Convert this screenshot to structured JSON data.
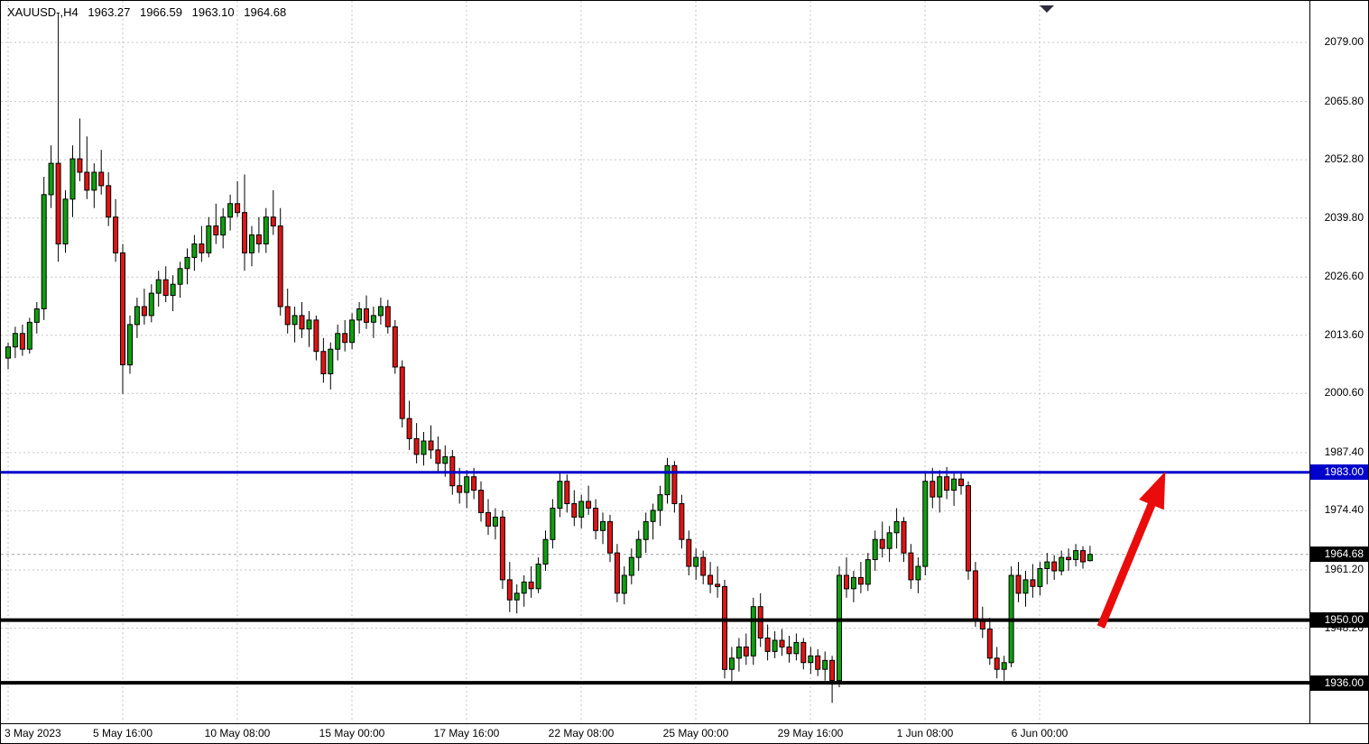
{
  "header": {
    "symbol_period": "XAUUSD-,H4",
    "open": "1963.27",
    "high": "1966.59",
    "low": "1963.10",
    "close": "1964.68"
  },
  "colors": {
    "background": "#FFFFFF",
    "up_candle": "#0FA00F",
    "down_candle": "#E01414",
    "candle_outline": "#000000",
    "grid": "#C6C6C6",
    "resistance_line": "#0000CC",
    "support_line": "#000000",
    "current_price_line": "#A0A0A0",
    "current_price_tag_bg": "#000000",
    "arrow": "#EA0B0B",
    "shift_marker": "#2E2E3E"
  },
  "chart_data": {
    "type": "candlestick",
    "symbol": "XAUUSD-",
    "timeframe": "H4",
    "title": "XAUUSD-,H4",
    "y_axis_ticks": [
      2079.0,
      2065.8,
      2052.8,
      2039.8,
      2026.6,
      2013.6,
      2000.6,
      1987.4,
      1974.4,
      1961.2,
      1948.2
    ],
    "x_axis_labels": [
      "3 May 2023",
      "5 May 16:00",
      "10 May 08:00",
      "15 May 00:00",
      "17 May 16:00",
      "22 May 08:00",
      "25 May 00:00",
      "29 May 16:00",
      "1 Jun 08:00",
      "6 Jun 00:00"
    ],
    "bars_per_x_label": 16,
    "price_range_visible": [
      1927.0,
      2088.3
    ],
    "horizontal_lines": [
      {
        "price": 1983.0,
        "label": "1983.00",
        "color": "#0000CC",
        "width": 3,
        "role": "resistance"
      },
      {
        "price": 1950.0,
        "label": "1950.00",
        "color": "#000000",
        "width": 4,
        "role": "support"
      },
      {
        "price": 1936.0,
        "label": "1936.00",
        "color": "#000000",
        "width": 4,
        "role": "support"
      }
    ],
    "current_price": {
      "value": 1964.68,
      "label": "1964.68"
    },
    "arrow": {
      "from": {
        "bar": 152.5,
        "price": 1948.5
      },
      "to": {
        "bar": 161.5,
        "price": 1983.2
      },
      "direction": "up-right"
    },
    "candles": [
      [
        2008.5,
        2012.0,
        2006.0,
        2011.0
      ],
      [
        2011.0,
        2015.5,
        2008.5,
        2014.0
      ],
      [
        2014.0,
        2016.0,
        2009.0,
        2010.5
      ],
      [
        2010.5,
        2017.5,
        2009.5,
        2016.5
      ],
      [
        2016.5,
        2021.0,
        2014.0,
        2019.5
      ],
      [
        2019.5,
        2049.0,
        2017.0,
        2045.0
      ],
      [
        2045.0,
        2056.0,
        2042.0,
        2052.0
      ],
      [
        2052.0,
        2085.4,
        2030.0,
        2034.0
      ],
      [
        2034.0,
        2046.0,
        2032.0,
        2044.0
      ],
      [
        2044.0,
        2056.0,
        2040.0,
        2053.0
      ],
      [
        2053.0,
        2062.0,
        2048.0,
        2050.0
      ],
      [
        2050.0,
        2058.0,
        2044.0,
        2046.0
      ],
      [
        2046.0,
        2052.0,
        2042.0,
        2050.0
      ],
      [
        2050.0,
        2055.0,
        2045.0,
        2047.0
      ],
      [
        2047.0,
        2050.0,
        2038.0,
        2040.0
      ],
      [
        2040.0,
        2044.0,
        2030.0,
        2032.0
      ],
      [
        2032.0,
        2034.0,
        2000.5,
        2007.0
      ],
      [
        2007.0,
        2018.0,
        2005.0,
        2016.0
      ],
      [
        2016.0,
        2022.0,
        2013.0,
        2020.0
      ],
      [
        2020.0,
        2024.0,
        2016.0,
        2018.0
      ],
      [
        2018.0,
        2025.0,
        2016.5,
        2023.0
      ],
      [
        2023.0,
        2028.0,
        2020.0,
        2026.0
      ],
      [
        2026.0,
        2029.0,
        2021.0,
        2022.5
      ],
      [
        2022.5,
        2027.0,
        2019.0,
        2025.0
      ],
      [
        2025.0,
        2030.0,
        2022.0,
        2028.5
      ],
      [
        2028.5,
        2033.0,
        2025.0,
        2031.0
      ],
      [
        2031.0,
        2036.0,
        2028.0,
        2034.0
      ],
      [
        2034.0,
        2038.0,
        2030.0,
        2032.0
      ],
      [
        2032.0,
        2040.0,
        2031.0,
        2038.0
      ],
      [
        2038.0,
        2043.0,
        2034.0,
        2036.0
      ],
      [
        2036.0,
        2042.0,
        2033.0,
        2040.0
      ],
      [
        2040.0,
        2045.0,
        2037.0,
        2043.0
      ],
      [
        2043.0,
        2048.0,
        2040.0,
        2041.0
      ],
      [
        2041.0,
        2049.5,
        2028.0,
        2032.0
      ],
      [
        2032.0,
        2038.0,
        2029.0,
        2036.0
      ],
      [
        2036.0,
        2040.0,
        2032.0,
        2034.0
      ],
      [
        2034.0,
        2042.0,
        2032.0,
        2040.0
      ],
      [
        2040.0,
        2046.0,
        2036.0,
        2038.0
      ],
      [
        2038.0,
        2042.0,
        2018.0,
        2020.0
      ],
      [
        2020.0,
        2024.0,
        2014.0,
        2016.0
      ],
      [
        2016.0,
        2020.0,
        2012.0,
        2018.0
      ],
      [
        2018.0,
        2021.0,
        2013.0,
        2015.0
      ],
      [
        2015.0,
        2019.0,
        2011.0,
        2017.0
      ],
      [
        2017.0,
        2018.0,
        2008.0,
        2010.0
      ],
      [
        2010.0,
        2013.0,
        2003.0,
        2005.0
      ],
      [
        2005.0,
        2012.0,
        2001.5,
        2010.5
      ],
      [
        2010.5,
        2016.0,
        2008.0,
        2014.0
      ],
      [
        2014.0,
        2017.0,
        2010.0,
        2012.0
      ],
      [
        2012.0,
        2018.5,
        2010.5,
        2017.0
      ],
      [
        2017.0,
        2021.0,
        2014.0,
        2019.5
      ],
      [
        2019.5,
        2022.5,
        2015.0,
        2016.5
      ],
      [
        2016.5,
        2020.0,
        2013.0,
        2018.0
      ],
      [
        2018.0,
        2022.0,
        2016.0,
        2020.0
      ],
      [
        2020.0,
        2021.5,
        2014.0,
        2015.5
      ],
      [
        2015.5,
        2017.0,
        2005.0,
        2006.5
      ],
      [
        2006.5,
        2008.0,
        1993.0,
        1995.0
      ],
      [
        1995.0,
        1999.0,
        1988.0,
        1990.5
      ],
      [
        1990.5,
        1994.0,
        1985.0,
        1987.0
      ],
      [
        1987.0,
        1992.0,
        1984.5,
        1990.0
      ],
      [
        1990.0,
        1993.5,
        1986.0,
        1988.0
      ],
      [
        1988.0,
        1991.0,
        1983.0,
        1985.0
      ],
      [
        1985.0,
        1989.0,
        1982.0,
        1986.5
      ],
      [
        1986.5,
        1988.0,
        1978.0,
        1980.0
      ],
      [
        1980.0,
        1984.0,
        1976.0,
        1978.5
      ],
      [
        1978.5,
        1983.5,
        1975.0,
        1982.0
      ],
      [
        1982.0,
        1984.0,
        1977.0,
        1979.0
      ],
      [
        1979.0,
        1981.0,
        1972.0,
        1974.0
      ],
      [
        1974.0,
        1977.0,
        1969.0,
        1971.0
      ],
      [
        1971.0,
        1975.0,
        1968.0,
        1973.0
      ],
      [
        1973.0,
        1974.5,
        1957.0,
        1959.0
      ],
      [
        1959.0,
        1963.0,
        1951.8,
        1954.5
      ],
      [
        1954.5,
        1958.0,
        1951.5,
        1956.0
      ],
      [
        1956.0,
        1960.0,
        1953.0,
        1958.5
      ],
      [
        1958.5,
        1962.0,
        1955.0,
        1957.0
      ],
      [
        1957.0,
        1964.0,
        1956.0,
        1962.5
      ],
      [
        1962.5,
        1970.0,
        1961.0,
        1968.0
      ],
      [
        1968.0,
        1977.0,
        1966.0,
        1975.0
      ],
      [
        1975.0,
        1983.2,
        1973.0,
        1981.0
      ],
      [
        1981.0,
        1982.5,
        1974.0,
        1976.0
      ],
      [
        1976.0,
        1979.0,
        1971.0,
        1973.0
      ],
      [
        1973.0,
        1978.0,
        1970.5,
        1976.5
      ],
      [
        1976.5,
        1980.0,
        1973.5,
        1975.0
      ],
      [
        1975.0,
        1977.0,
        1968.0,
        1970.0
      ],
      [
        1970.0,
        1974.0,
        1967.0,
        1972.0
      ],
      [
        1972.0,
        1973.5,
        1963.0,
        1965.0
      ],
      [
        1965.0,
        1967.0,
        1954.0,
        1956.0
      ],
      [
        1956.0,
        1962.0,
        1953.5,
        1960.0
      ],
      [
        1960.0,
        1966.0,
        1958.0,
        1964.0
      ],
      [
        1964.0,
        1970.0,
        1961.0,
        1968.0
      ],
      [
        1968.0,
        1974.0,
        1965.0,
        1972.0
      ],
      [
        1972.0,
        1976.0,
        1968.0,
        1974.5
      ],
      [
        1974.5,
        1980.0,
        1971.0,
        1978.0
      ],
      [
        1978.0,
        1986.2,
        1976.0,
        1984.5
      ],
      [
        1984.5,
        1985.5,
        1974.0,
        1976.0
      ],
      [
        1976.0,
        1978.0,
        1966.0,
        1968.0
      ],
      [
        1968.0,
        1970.0,
        1960.0,
        1962.0
      ],
      [
        1962.0,
        1966.0,
        1959.0,
        1964.0
      ],
      [
        1964.0,
        1965.5,
        1958.0,
        1960.0
      ],
      [
        1960.0,
        1963.0,
        1956.0,
        1958.0
      ],
      [
        1958.0,
        1962.0,
        1955.0,
        1957.5
      ],
      [
        1957.5,
        1959.0,
        1937.0,
        1939.0
      ],
      [
        1939.0,
        1944.0,
        1936.2,
        1941.5
      ],
      [
        1941.5,
        1946.0,
        1938.5,
        1944.0
      ],
      [
        1944.0,
        1947.0,
        1940.0,
        1942.0
      ],
      [
        1942.0,
        1955.0,
        1940.0,
        1953.0
      ],
      [
        1953.0,
        1956.0,
        1944.0,
        1946.0
      ],
      [
        1946.0,
        1949.0,
        1941.0,
        1943.0
      ],
      [
        1943.0,
        1947.5,
        1941.5,
        1945.5
      ],
      [
        1945.5,
        1948.0,
        1942.0,
        1944.0
      ],
      [
        1944.0,
        1946.5,
        1940.5,
        1942.5
      ],
      [
        1942.5,
        1947.0,
        1941.0,
        1945.0
      ],
      [
        1945.0,
        1946.0,
        1939.0,
        1940.5
      ],
      [
        1940.5,
        1944.0,
        1938.0,
        1942.0
      ],
      [
        1942.0,
        1943.5,
        1937.5,
        1939.0
      ],
      [
        1939.0,
        1943.0,
        1936.5,
        1941.0
      ],
      [
        1941.0,
        1942.0,
        1931.5,
        1936.5
      ],
      [
        1936.5,
        1962.0,
        1935.0,
        1960.0
      ],
      [
        1960.0,
        1964.0,
        1955.0,
        1957.0
      ],
      [
        1957.0,
        1961.0,
        1954.0,
        1959.5
      ],
      [
        1959.5,
        1963.0,
        1956.0,
        1958.0
      ],
      [
        1958.0,
        1965.0,
        1956.5,
        1963.5
      ],
      [
        1963.5,
        1970.0,
        1961.0,
        1968.0
      ],
      [
        1968.0,
        1972.0,
        1964.0,
        1966.0
      ],
      [
        1966.0,
        1971.0,
        1963.0,
        1969.5
      ],
      [
        1969.5,
        1975.0,
        1966.0,
        1972.0
      ],
      [
        1972.0,
        1973.0,
        1963.0,
        1965.0
      ],
      [
        1965.0,
        1967.0,
        1957.0,
        1959.0
      ],
      [
        1959.0,
        1964.0,
        1956.0,
        1962.0
      ],
      [
        1962.0,
        1983.0,
        1960.0,
        1981.0
      ],
      [
        1981.0,
        1984.0,
        1975.0,
        1977.5
      ],
      [
        1977.5,
        1983.5,
        1974.0,
        1982.0
      ],
      [
        1982.0,
        1984.2,
        1977.0,
        1979.0
      ],
      [
        1979.0,
        1983.0,
        1975.5,
        1981.5
      ],
      [
        1981.5,
        1983.0,
        1978.0,
        1980.0
      ],
      [
        1980.0,
        1981.0,
        1959.0,
        1961.0
      ],
      [
        1961.0,
        1963.0,
        1948.5,
        1950.0
      ],
      [
        1950.0,
        1953.0,
        1946.0,
        1948.0
      ],
      [
        1948.0,
        1950.5,
        1940.0,
        1941.5
      ],
      [
        1941.5,
        1944.0,
        1937.0,
        1939.0
      ],
      [
        1939.0,
        1942.0,
        1936.5,
        1940.5
      ],
      [
        1940.5,
        1962.0,
        1939.5,
        1960.0
      ],
      [
        1960.0,
        1963.0,
        1954.0,
        1956.0
      ],
      [
        1956.0,
        1961.0,
        1953.0,
        1959.0
      ],
      [
        1959.0,
        1962.5,
        1955.0,
        1957.5
      ],
      [
        1957.5,
        1963.0,
        1955.5,
        1961.5
      ],
      [
        1961.5,
        1965.0,
        1958.0,
        1963.0
      ],
      [
        1963.0,
        1964.5,
        1959.0,
        1961.0
      ],
      [
        1961.0,
        1965.5,
        1960.0,
        1964.0
      ],
      [
        1964.0,
        1966.0,
        1961.0,
        1963.5
      ],
      [
        1963.5,
        1967.0,
        1962.0,
        1965.5
      ],
      [
        1965.5,
        1966.5,
        1961.5,
        1963.0
      ],
      [
        1963.27,
        1966.59,
        1963.1,
        1964.68
      ]
    ]
  }
}
